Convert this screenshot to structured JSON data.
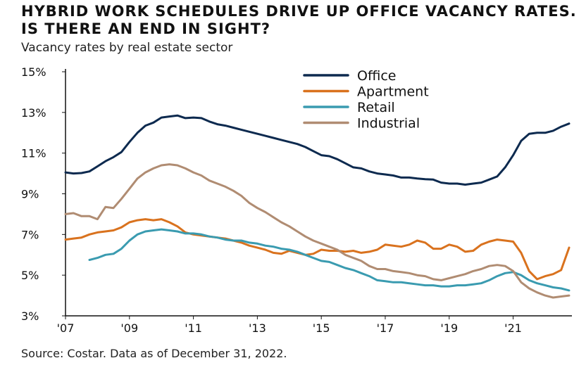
{
  "header": {
    "title": "HYBRID WORK SCHEDULES DRIVE UP OFFICE VACANCY RATES. IS THERE AN END IN SIGHT?",
    "subtitle": "Vacancy rates by real estate sector"
  },
  "footer": {
    "source": "Source: Costar. Data as of December 31, 2022."
  },
  "chart_data": {
    "type": "line",
    "title": "HYBRID WORK SCHEDULES DRIVE UP OFFICE VACANCY RATES. IS THERE AN END IN SIGHT?",
    "subtitle": "Vacancy rates by real estate sector",
    "xlabel": "",
    "ylabel": "",
    "xlim": [
      2007,
      2022.75
    ],
    "ylim": [
      3,
      15
    ],
    "x_ticks": [
      2007,
      2009,
      2011,
      2013,
      2015,
      2017,
      2019,
      2021
    ],
    "x_tick_labels": [
      "'07",
      "'09",
      "'11",
      "'13",
      "'15",
      "'17",
      "'19",
      "'21"
    ],
    "y_ticks": [
      3,
      5,
      7,
      9,
      11,
      13,
      15
    ],
    "y_tick_labels": [
      "3%",
      "5%",
      "7%",
      "9%",
      "11%",
      "13%",
      "15%"
    ],
    "grid": false,
    "legend_position": "top-right",
    "series": [
      {
        "name": "Office",
        "color": "#0d2a4f",
        "x": [
          2007,
          2007.25,
          2007.5,
          2007.75,
          2008,
          2008.25,
          2008.5,
          2008.75,
          2009,
          2009.25,
          2009.5,
          2009.75,
          2010,
          2010.25,
          2010.5,
          2010.75,
          2011,
          2011.25,
          2011.5,
          2011.75,
          2012,
          2012.25,
          2012.5,
          2012.75,
          2013,
          2013.25,
          2013.5,
          2013.75,
          2014,
          2014.25,
          2014.5,
          2014.75,
          2015,
          2015.25,
          2015.5,
          2015.75,
          2016,
          2016.25,
          2016.5,
          2016.75,
          2017,
          2017.25,
          2017.5,
          2017.75,
          2018,
          2018.25,
          2018.5,
          2018.75,
          2019,
          2019.25,
          2019.5,
          2019.75,
          2020,
          2020.25,
          2020.5,
          2020.75,
          2021,
          2021.25,
          2021.5,
          2021.75,
          2022,
          2022.25,
          2022.5,
          2022.75
        ],
        "values": [
          10.05,
          10.0,
          10.02,
          10.1,
          10.35,
          10.6,
          10.8,
          11.05,
          11.55,
          12.0,
          12.35,
          12.5,
          12.75,
          12.8,
          12.85,
          12.72,
          12.75,
          12.72,
          12.55,
          12.42,
          12.35,
          12.25,
          12.15,
          12.05,
          11.95,
          11.85,
          11.75,
          11.65,
          11.55,
          11.45,
          11.3,
          11.1,
          10.9,
          10.85,
          10.7,
          10.5,
          10.3,
          10.25,
          10.1,
          10.0,
          9.95,
          9.9,
          9.8,
          9.8,
          9.75,
          9.72,
          9.7,
          9.55,
          9.5,
          9.5,
          9.45,
          9.5,
          9.55,
          9.7,
          9.85,
          10.3,
          10.9,
          11.6,
          11.95,
          12.0,
          12.0,
          12.1,
          12.3,
          12.45
        ]
      },
      {
        "name": "Apartment",
        "color": "#d9721e",
        "x": [
          2007,
          2007.25,
          2007.5,
          2007.75,
          2008,
          2008.25,
          2008.5,
          2008.75,
          2009,
          2009.25,
          2009.5,
          2009.75,
          2010,
          2010.25,
          2010.5,
          2010.75,
          2011,
          2011.25,
          2011.5,
          2011.75,
          2012,
          2012.25,
          2012.5,
          2012.75,
          2013,
          2013.25,
          2013.5,
          2013.75,
          2014,
          2014.25,
          2014.5,
          2014.75,
          2015,
          2015.25,
          2015.5,
          2015.75,
          2016,
          2016.25,
          2016.5,
          2016.75,
          2017,
          2017.25,
          2017.5,
          2017.75,
          2018,
          2018.25,
          2018.5,
          2018.75,
          2019,
          2019.25,
          2019.5,
          2019.75,
          2020,
          2020.25,
          2020.5,
          2020.75,
          2021,
          2021.25,
          2021.5,
          2021.75,
          2022,
          2022.25,
          2022.5,
          2022.75
        ],
        "values": [
          6.75,
          6.8,
          6.85,
          7.0,
          7.1,
          7.15,
          7.2,
          7.35,
          7.6,
          7.7,
          7.75,
          7.7,
          7.75,
          7.6,
          7.4,
          7.1,
          7.0,
          6.95,
          6.9,
          6.85,
          6.8,
          6.7,
          6.6,
          6.45,
          6.35,
          6.25,
          6.1,
          6.05,
          6.2,
          6.1,
          6.0,
          6.05,
          6.25,
          6.2,
          6.2,
          6.15,
          6.2,
          6.1,
          6.15,
          6.25,
          6.5,
          6.45,
          6.4,
          6.5,
          6.7,
          6.6,
          6.3,
          6.3,
          6.5,
          6.4,
          6.15,
          6.2,
          6.5,
          6.65,
          6.75,
          6.7,
          6.65,
          6.1,
          5.2,
          4.8,
          4.95,
          5.05,
          5.25,
          6.35
        ]
      },
      {
        "name": "Retail",
        "color": "#3a9bb0",
        "x": [
          2007.75,
          2008,
          2008.25,
          2008.5,
          2008.75,
          2009,
          2009.25,
          2009.5,
          2009.75,
          2010,
          2010.25,
          2010.5,
          2010.75,
          2011,
          2011.25,
          2011.5,
          2011.75,
          2012,
          2012.25,
          2012.5,
          2012.75,
          2013,
          2013.25,
          2013.5,
          2013.75,
          2014,
          2014.25,
          2014.5,
          2014.75,
          2015,
          2015.25,
          2015.5,
          2015.75,
          2016,
          2016.25,
          2016.5,
          2016.75,
          2017,
          2017.25,
          2017.5,
          2017.75,
          2018,
          2018.25,
          2018.5,
          2018.75,
          2019,
          2019.25,
          2019.5,
          2019.75,
          2020,
          2020.25,
          2020.5,
          2020.75,
          2021,
          2021.25,
          2021.5,
          2021.75,
          2022,
          2022.25,
          2022.5,
          2022.75
        ],
        "values": [
          5.75,
          5.85,
          6.0,
          6.05,
          6.3,
          6.7,
          7.0,
          7.15,
          7.2,
          7.25,
          7.2,
          7.15,
          7.05,
          7.05,
          7.0,
          6.9,
          6.85,
          6.75,
          6.7,
          6.7,
          6.6,
          6.55,
          6.45,
          6.4,
          6.3,
          6.25,
          6.15,
          6.0,
          5.85,
          5.7,
          5.65,
          5.5,
          5.35,
          5.25,
          5.1,
          4.95,
          4.75,
          4.7,
          4.65,
          4.65,
          4.6,
          4.55,
          4.5,
          4.5,
          4.45,
          4.45,
          4.5,
          4.5,
          4.55,
          4.6,
          4.75,
          4.95,
          5.1,
          5.15,
          5.0,
          4.75,
          4.6,
          4.5,
          4.4,
          4.35,
          4.25
        ]
      },
      {
        "name": "Industrial",
        "color": "#b08c72",
        "x": [
          2007,
          2007.25,
          2007.5,
          2007.75,
          2008,
          2008.25,
          2008.5,
          2008.75,
          2009,
          2009.25,
          2009.5,
          2009.75,
          2010,
          2010.25,
          2010.5,
          2010.75,
          2011,
          2011.25,
          2011.5,
          2011.75,
          2012,
          2012.25,
          2012.5,
          2012.75,
          2013,
          2013.25,
          2013.5,
          2013.75,
          2014,
          2014.25,
          2014.5,
          2014.75,
          2015,
          2015.25,
          2015.5,
          2015.75,
          2016,
          2016.25,
          2016.5,
          2016.75,
          2017,
          2017.25,
          2017.5,
          2017.75,
          2018,
          2018.25,
          2018.5,
          2018.75,
          2019,
          2019.25,
          2019.5,
          2019.75,
          2020,
          2020.25,
          2020.5,
          2020.75,
          2021,
          2021.25,
          2021.5,
          2021.75,
          2022,
          2022.25,
          2022.5,
          2022.75
        ],
        "values": [
          8.0,
          8.05,
          7.9,
          7.9,
          7.75,
          8.35,
          8.3,
          8.75,
          9.25,
          9.75,
          10.05,
          10.25,
          10.4,
          10.45,
          10.4,
          10.25,
          10.05,
          9.9,
          9.65,
          9.5,
          9.35,
          9.15,
          8.9,
          8.55,
          8.3,
          8.1,
          7.85,
          7.6,
          7.4,
          7.15,
          6.9,
          6.7,
          6.55,
          6.4,
          6.25,
          6.0,
          5.85,
          5.7,
          5.45,
          5.3,
          5.3,
          5.2,
          5.15,
          5.1,
          5.0,
          4.95,
          4.8,
          4.75,
          4.85,
          4.95,
          5.05,
          5.2,
          5.3,
          5.45,
          5.5,
          5.45,
          5.2,
          4.65,
          4.35,
          4.15,
          4.0,
          3.9,
          3.95,
          4.0
        ]
      }
    ]
  }
}
